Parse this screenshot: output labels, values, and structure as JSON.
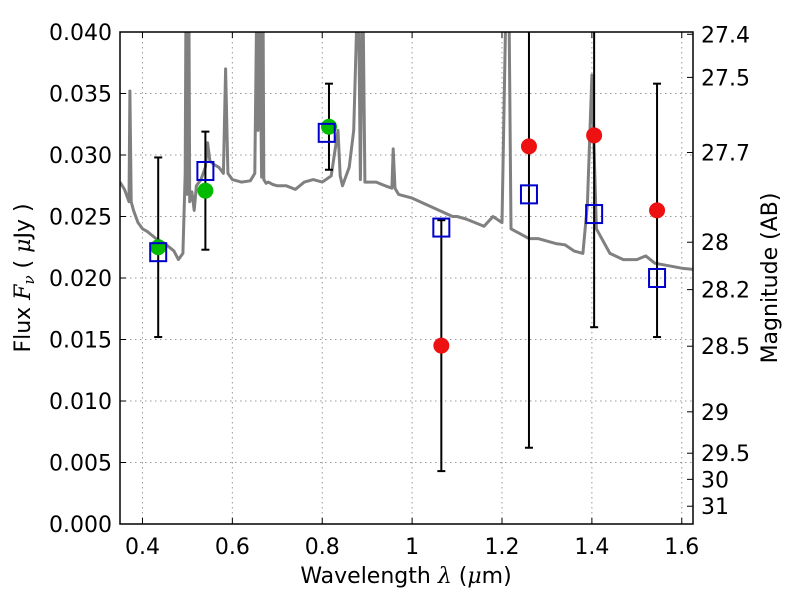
{
  "chart_data": {
    "type": "scatter",
    "title": "",
    "xlabel_parts": [
      "Wavelength  ",
      "λ",
      " (",
      "μ",
      "m)"
    ],
    "ylabel_parts": [
      "Flux  ",
      "F",
      "ν",
      "  ( ",
      "μ",
      "Jy )"
    ],
    "y2label": "Magnitude (AB)",
    "xlim": [
      0.35,
      1.625
    ],
    "ylim": [
      0.0,
      0.04
    ],
    "grid": true,
    "x_ticks": [
      {
        "value": 0.4,
        "label": "0.4"
      },
      {
        "value": 0.6,
        "label": "0.6"
      },
      {
        "value": 0.8,
        "label": "0.8"
      },
      {
        "value": 1.0,
        "label": "1"
      },
      {
        "value": 1.2,
        "label": "1.2"
      },
      {
        "value": 1.4,
        "label": "1.4"
      },
      {
        "value": 1.6,
        "label": "1.6"
      }
    ],
    "y_ticks": [
      {
        "value": 0.0,
        "label": "0.000"
      },
      {
        "value": 0.005,
        "label": "0.005"
      },
      {
        "value": 0.01,
        "label": "0.010"
      },
      {
        "value": 0.015,
        "label": "0.015"
      },
      {
        "value": 0.02,
        "label": "0.020"
      },
      {
        "value": 0.025,
        "label": "0.025"
      },
      {
        "value": 0.03,
        "label": "0.030"
      },
      {
        "value": 0.035,
        "label": "0.035"
      },
      {
        "value": 0.04,
        "label": "0.040"
      }
    ],
    "y2_ticks": [
      {
        "mag": 27.4,
        "label": "27.4"
      },
      {
        "mag": 27.5,
        "label": "27.5"
      },
      {
        "mag": 27.7,
        "label": "27.7"
      },
      {
        "mag": 28.0,
        "label": "28"
      },
      {
        "mag": 28.2,
        "label": "28.2"
      },
      {
        "mag": 28.5,
        "label": "28.5"
      },
      {
        "mag": 29.0,
        "label": "29"
      },
      {
        "mag": 29.5,
        "label": "29.5"
      },
      {
        "mag": 30.0,
        "label": "30"
      },
      {
        "mag": 31.0,
        "label": "31"
      }
    ],
    "colors": {
      "sed": "#808080",
      "model": "#0000cc",
      "observed_detection": "#00bb00",
      "observed_other": "#ee1111",
      "errorbar": "#000000",
      "grid": "#999999"
    },
    "series": [
      {
        "kind": "line",
        "color_key": "sed",
        "x": [
          0.35,
          0.36,
          0.37,
          0.372,
          0.375,
          0.38,
          0.39,
          0.4,
          0.41,
          0.42,
          0.43,
          0.44,
          0.45,
          0.46,
          0.47,
          0.48,
          0.49,
          0.495,
          0.497,
          0.5,
          0.503,
          0.505,
          0.51,
          0.515,
          0.52,
          0.53,
          0.54,
          0.545,
          0.55,
          0.56,
          0.57,
          0.58,
          0.585,
          0.59,
          0.6,
          0.62,
          0.64,
          0.65,
          0.655,
          0.657,
          0.66,
          0.665,
          0.668,
          0.67,
          0.675,
          0.68,
          0.69,
          0.7,
          0.72,
          0.74,
          0.76,
          0.78,
          0.8,
          0.82,
          0.835,
          0.84,
          0.845,
          0.85,
          0.86,
          0.87,
          0.88,
          0.885,
          0.89,
          0.895,
          0.9,
          0.92,
          0.94,
          0.955,
          0.958,
          0.962,
          0.97,
          1.0,
          1.03,
          1.06,
          1.09,
          1.1,
          1.12,
          1.14,
          1.16,
          1.18,
          1.2,
          1.21,
          1.215,
          1.22,
          1.23,
          1.24,
          1.26,
          1.28,
          1.3,
          1.32,
          1.34,
          1.36,
          1.38,
          1.39,
          1.4,
          1.41,
          1.44,
          1.47,
          1.5,
          1.52,
          1.54,
          1.57,
          1.6,
          1.625
        ],
        "y": [
          0.0278,
          0.0272,
          0.0262,
          0.0352,
          0.0262,
          0.0255,
          0.0245,
          0.024,
          0.0238,
          0.0235,
          0.0232,
          0.023,
          0.0228,
          0.0225,
          0.0222,
          0.0215,
          0.022,
          0.0285,
          0.045,
          0.0268,
          0.045,
          0.0262,
          0.027,
          0.0255,
          0.0275,
          0.028,
          0.029,
          0.031,
          0.0295,
          0.0292,
          0.029,
          0.0285,
          0.037,
          0.0285,
          0.028,
          0.0278,
          0.0279,
          0.0285,
          0.045,
          0.032,
          0.045,
          0.0282,
          0.045,
          0.028,
          0.0277,
          0.0278,
          0.0276,
          0.0275,
          0.0275,
          0.0272,
          0.0278,
          0.028,
          0.0278,
          0.0283,
          0.032,
          0.0283,
          0.0275,
          0.028,
          0.029,
          0.032,
          0.045,
          0.028,
          0.045,
          0.0278,
          0.0278,
          0.0278,
          0.0275,
          0.0273,
          0.0305,
          0.0273,
          0.0268,
          0.0265,
          0.026,
          0.0255,
          0.025,
          0.025,
          0.0248,
          0.0245,
          0.0242,
          0.025,
          0.0245,
          0.045,
          0.045,
          0.024,
          0.0238,
          0.0236,
          0.0232,
          0.0232,
          0.023,
          0.0228,
          0.0227,
          0.0222,
          0.022,
          0.026,
          0.0365,
          0.024,
          0.022,
          0.0215,
          0.0215,
          0.0218,
          0.0212,
          0.021,
          0.0208,
          0.0207
        ]
      },
      {
        "kind": "points",
        "marker": "circle",
        "color_key": "observed_detection",
        "x": [
          0.435,
          0.54,
          0.815
        ],
        "y": [
          0.0225,
          0.0271,
          0.0323
        ],
        "y_err": [
          0.0073,
          0.0048,
          0.0035
        ]
      },
      {
        "kind": "points",
        "marker": "circle",
        "color_key": "observed_other",
        "x": [
          1.065,
          1.26,
          1.405,
          1.545
        ],
        "y": [
          0.0145,
          0.0307,
          0.0316,
          0.0255
        ],
        "y_err": [
          0.0102,
          0.0245,
          0.0156,
          0.0103
        ]
      },
      {
        "kind": "points",
        "marker": "square",
        "color_key": "model",
        "x": [
          0.435,
          0.54,
          0.81,
          1.065,
          1.26,
          1.405,
          1.545
        ],
        "y": [
          0.0221,
          0.0287,
          0.0318,
          0.0241,
          0.0268,
          0.0252,
          0.02
        ]
      }
    ]
  }
}
